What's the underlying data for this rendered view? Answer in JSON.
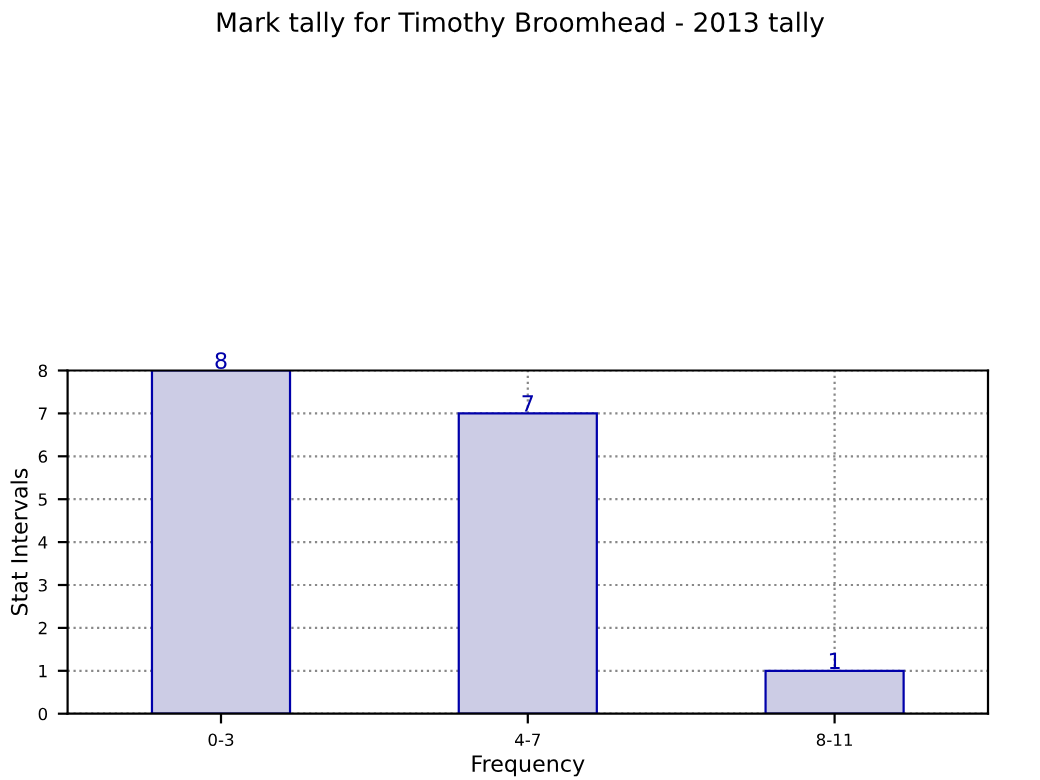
{
  "chart_data": {
    "type": "bar",
    "title": "Mark tally for Timothy Broomhead - 2013 tally",
    "xlabel": "Frequency",
    "ylabel": "Stat Intervals",
    "categories": [
      "0-3",
      "4-7",
      "8-11"
    ],
    "values": [
      8,
      7,
      1
    ],
    "color": "#cccce5",
    "ylim": [
      0,
      8
    ],
    "yticks": [
      0,
      1,
      2,
      3,
      4,
      5,
      6,
      7,
      8
    ],
    "grid": true,
    "data_labels": true
  }
}
